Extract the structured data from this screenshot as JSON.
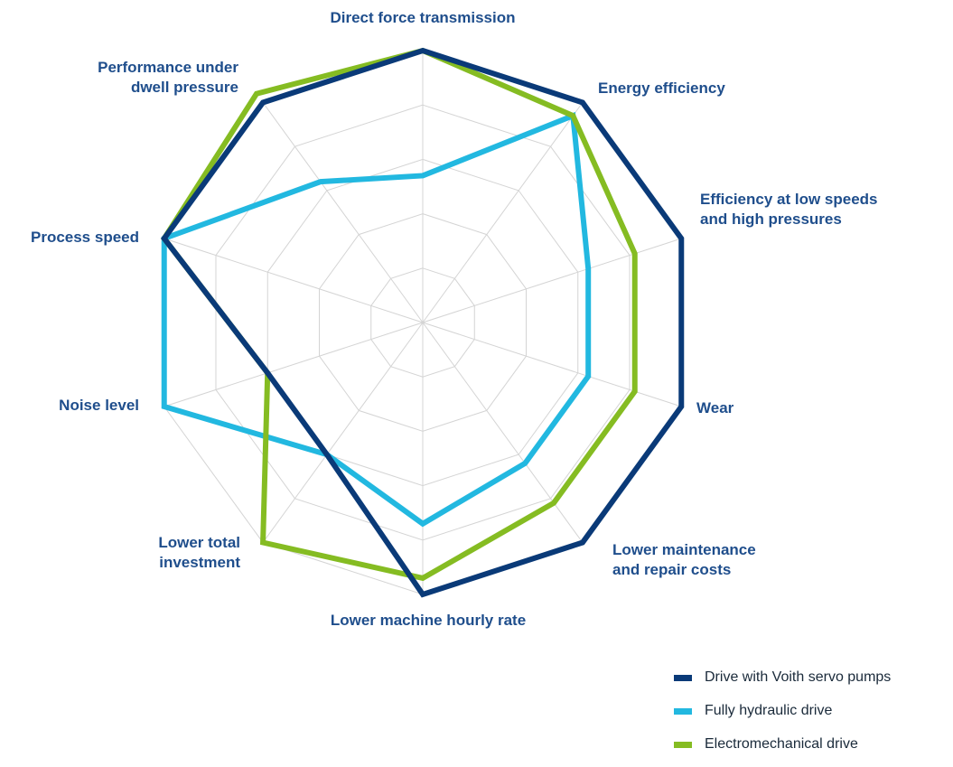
{
  "chart_data": {
    "type": "radar",
    "axes": [
      "Direct force transmission",
      "Energy efficiency",
      "Efficiency at low speeds\nand high pressures",
      "Wear",
      "Lower maintenance\nand repair costs",
      "Lower machine hourly rate",
      "Lower total\ninvestment",
      "Noise level",
      "Process speed",
      "Performance under\ndwell pressure"
    ],
    "levels": 5,
    "range": [
      0,
      5
    ],
    "grid": true,
    "legend_position": "bottom-right",
    "series": [
      {
        "name": "Drive with Voith servo pumps",
        "color": "#0a3a78",
        "values": [
          5,
          5,
          5,
          5,
          5,
          5,
          3,
          3,
          5,
          5
        ]
      },
      {
        "name": "Fully hydraulic drive",
        "color": "#22b8e0",
        "values": [
          2.7,
          4.7,
          3.2,
          3.2,
          3.2,
          3.7,
          3,
          5,
          5,
          3.2
        ]
      },
      {
        "name": "Electromechanical drive",
        "color": "#85bc22",
        "values": [
          5,
          4.7,
          4.1,
          4.1,
          4.1,
          4.7,
          5,
          3,
          5,
          5.2
        ]
      }
    ]
  }
}
